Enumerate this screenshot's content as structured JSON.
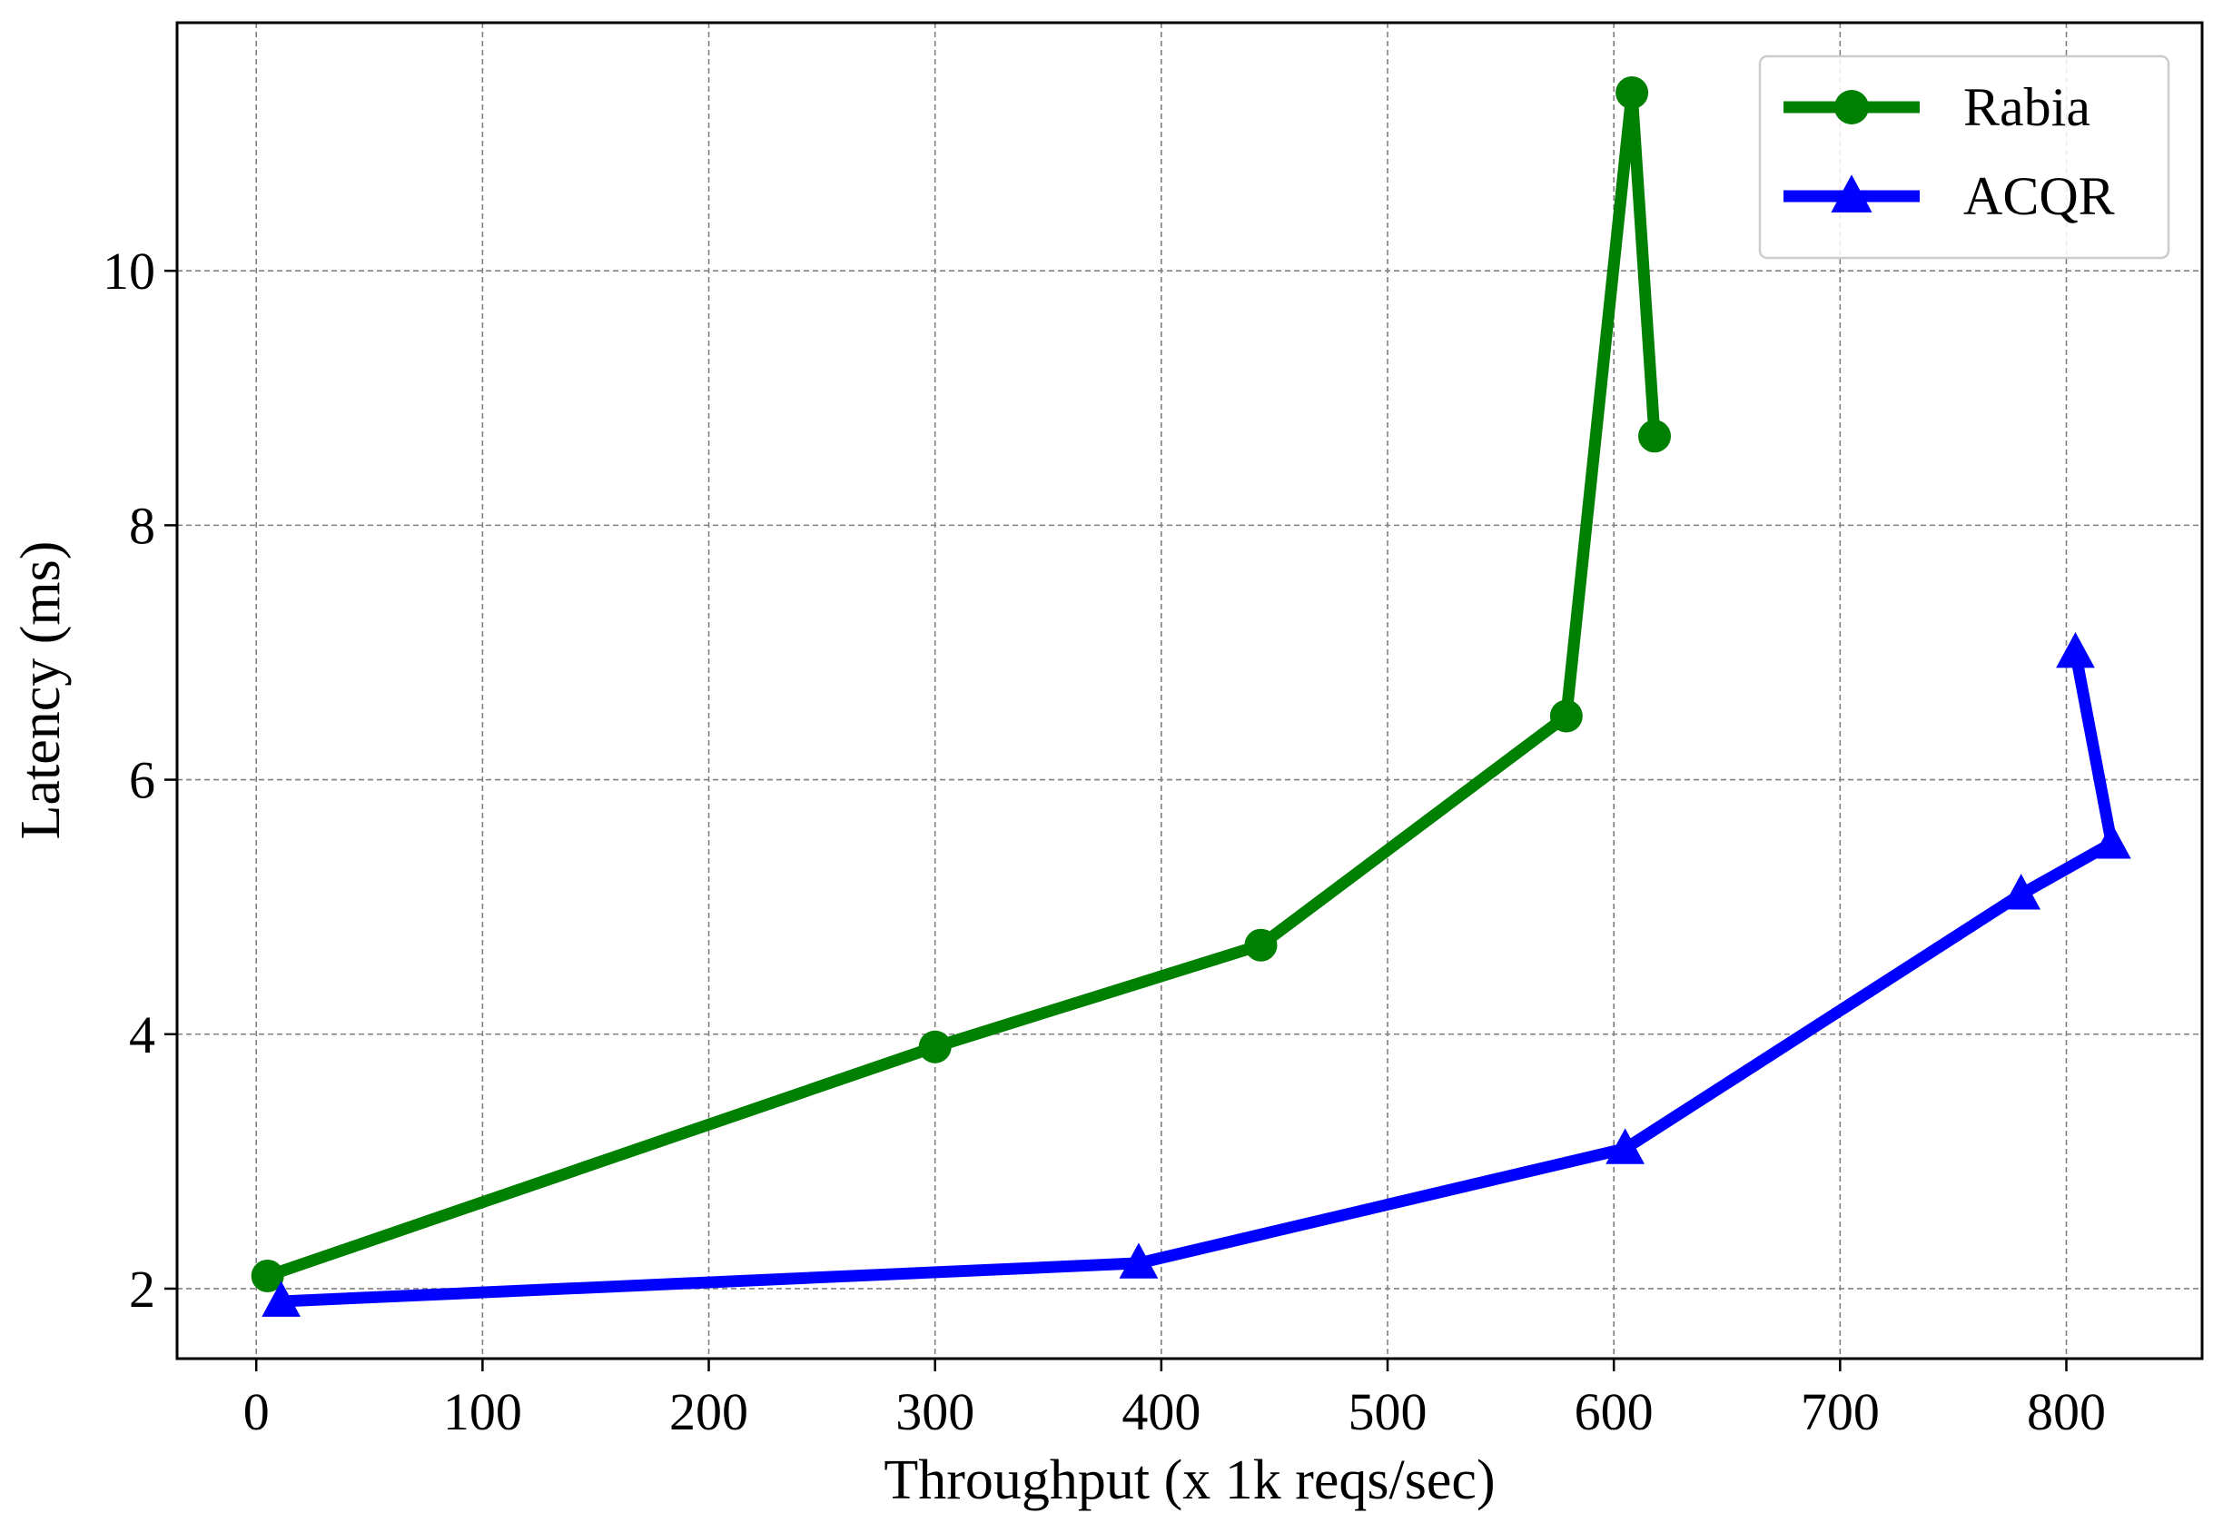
{
  "chart_data": {
    "type": "line",
    "xlabel": "Throughput (x 1k reqs/sec)",
    "ylabel": "Latency (ms)",
    "xlim": [
      -35,
      860
    ],
    "ylim": [
      1.45,
      11.95
    ],
    "xticks": [
      0,
      100,
      200,
      300,
      400,
      500,
      600,
      700,
      800
    ],
    "yticks": [
      2,
      4,
      6,
      8,
      10
    ],
    "xtick_labels": [
      "0",
      "100",
      "200",
      "300",
      "400",
      "500",
      "600",
      "700",
      "800"
    ],
    "ytick_labels": [
      "2",
      "4",
      "6",
      "8",
      "10"
    ],
    "grid": true,
    "legend_position": "top-right",
    "series": [
      {
        "name": "Rabia",
        "color": "#008000",
        "marker": "circle",
        "x": [
          5,
          300,
          444,
          579,
          608,
          618
        ],
        "y": [
          2.1,
          3.9,
          4.7,
          6.5,
          11.4,
          8.7
        ]
      },
      {
        "name": "ACQR",
        "color": "#0000ff",
        "marker": "triangle",
        "x": [
          11,
          390,
          605,
          780,
          820,
          804
        ],
        "y": [
          1.9,
          2.2,
          3.1,
          5.1,
          5.5,
          7.0
        ]
      }
    ]
  }
}
